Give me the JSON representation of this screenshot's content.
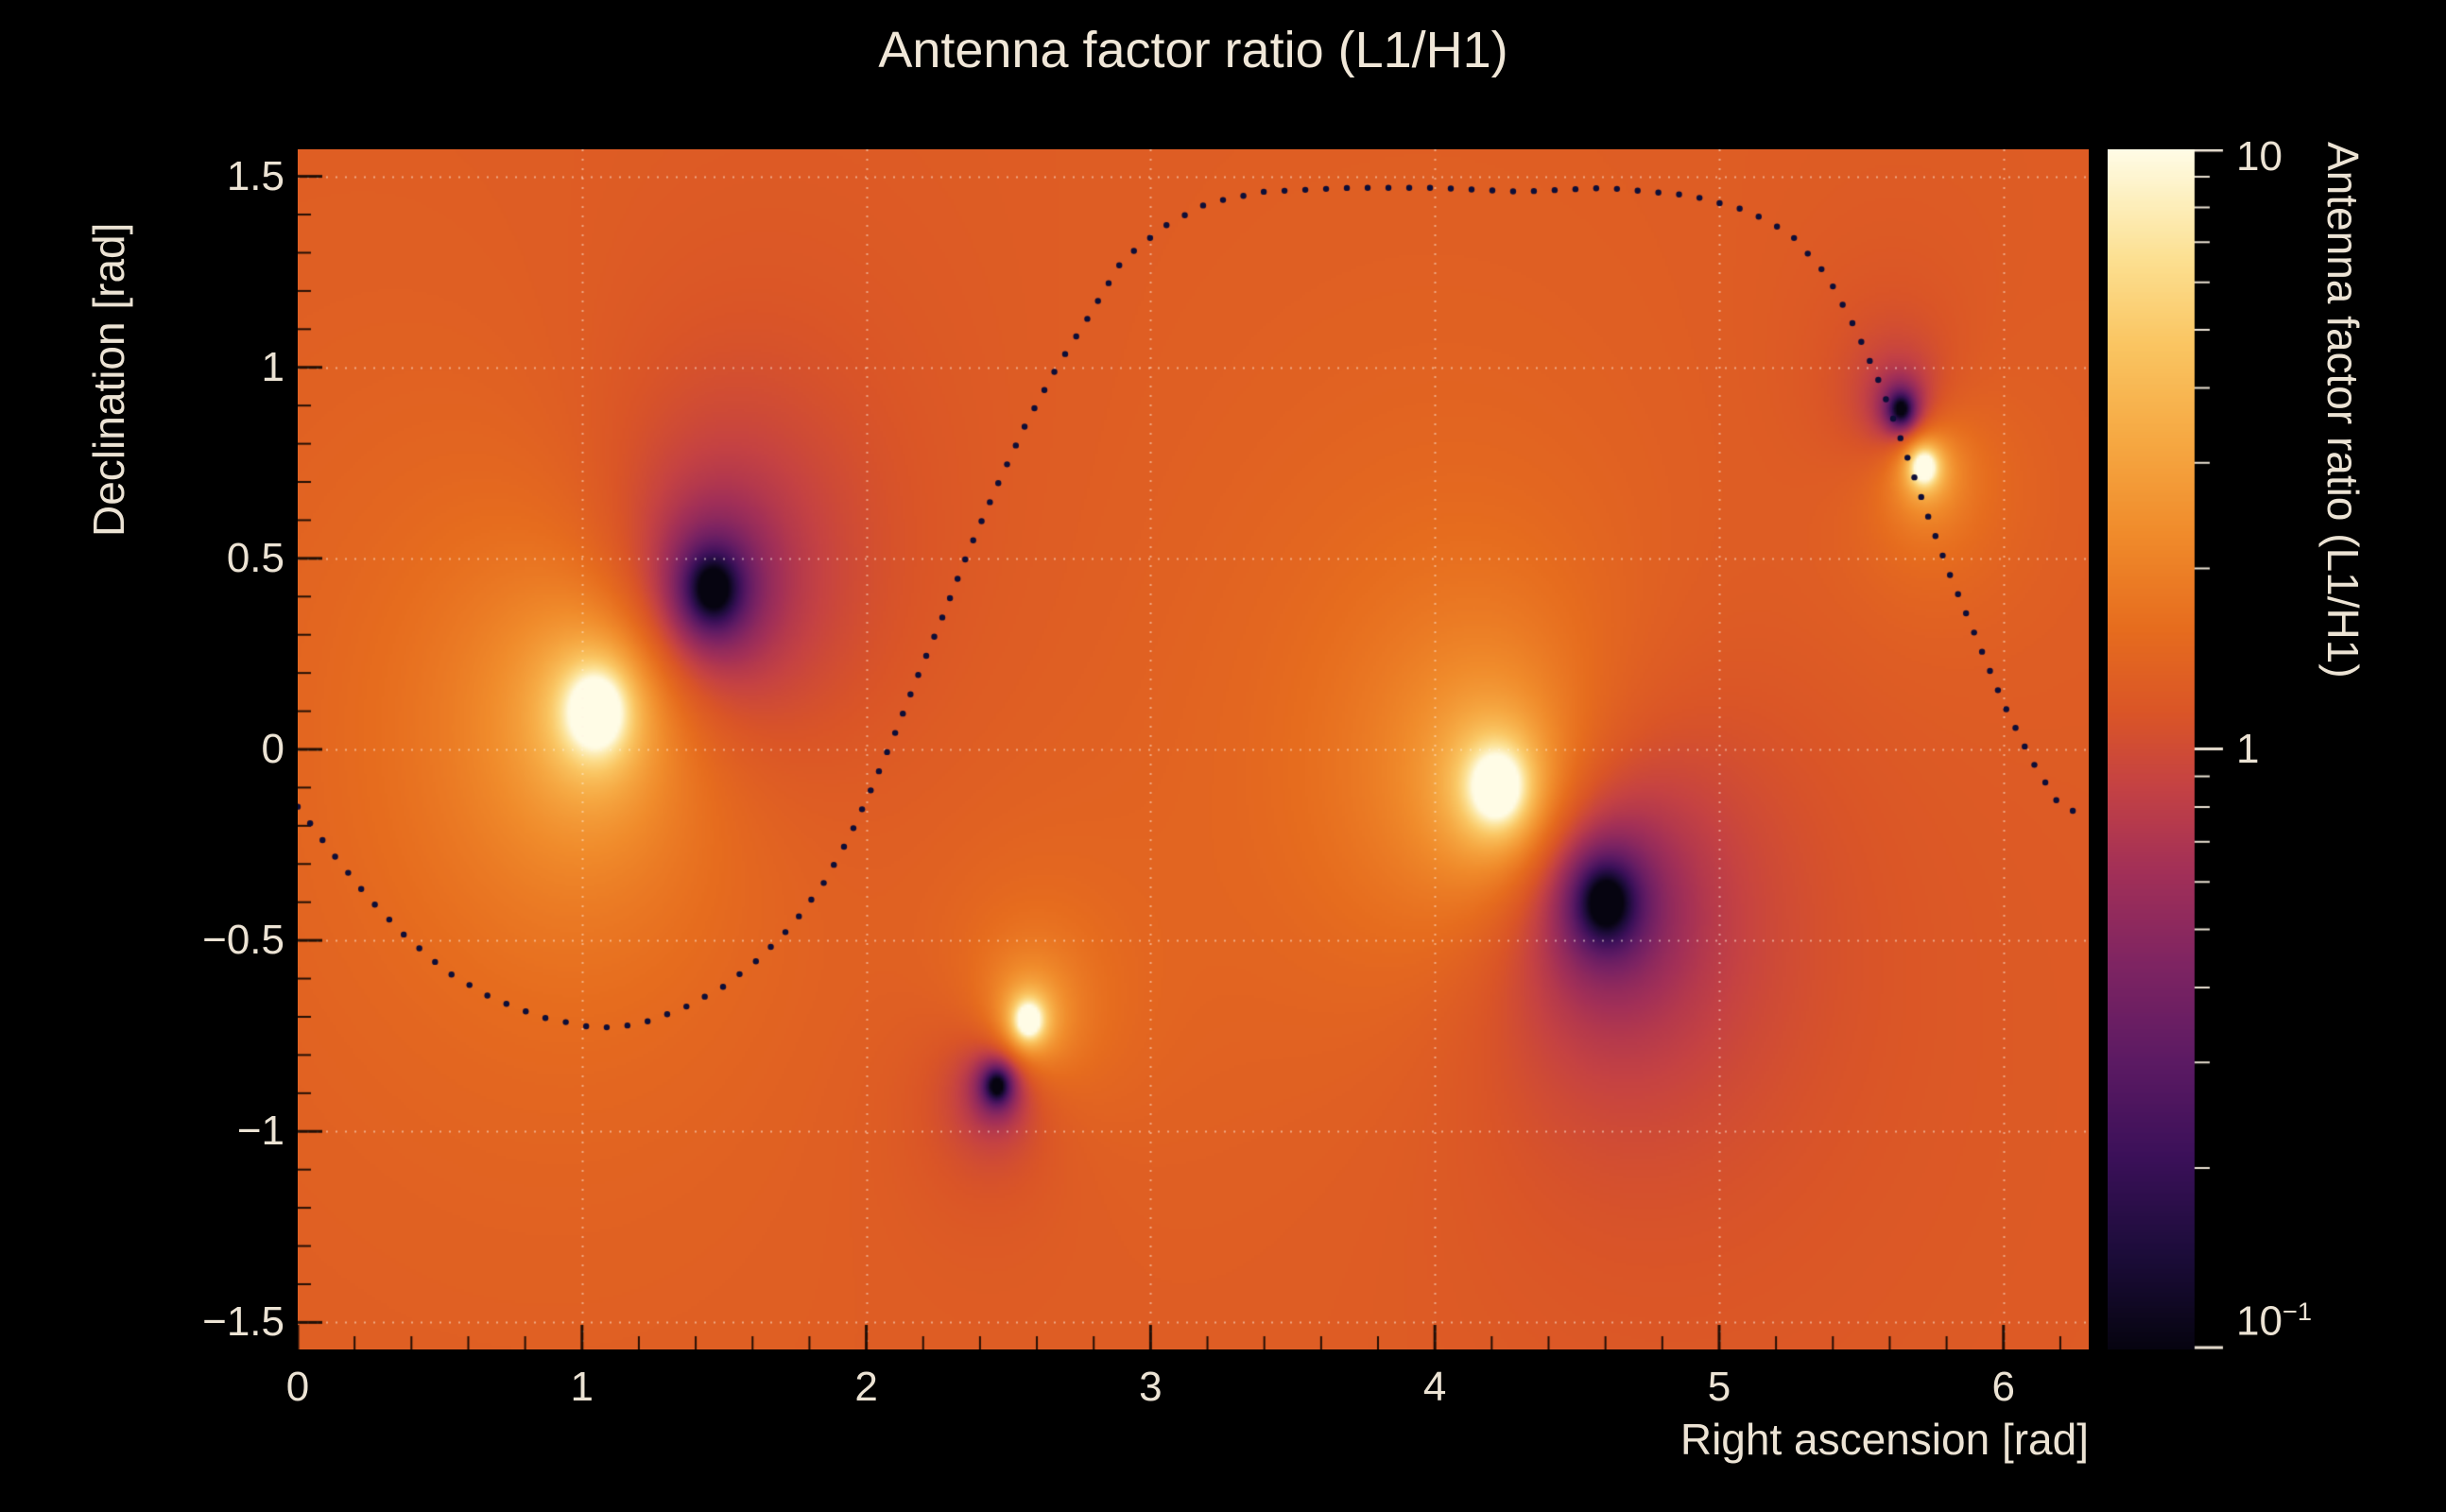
{
  "title": "Antenna factor ratio (L1/H1)",
  "axes": {
    "x": {
      "title": "Right ascension [rad]",
      "tick_labels": [
        "0",
        "1",
        "2",
        "3",
        "4",
        "5",
        "6"
      ],
      "tick_values": [
        0,
        1,
        2,
        3,
        4,
        5,
        6
      ],
      "range": [
        0,
        6.3
      ]
    },
    "y": {
      "title": "Declination [rad]",
      "tick_labels": [
        "1.5",
        "1",
        "0.5",
        "0",
        "−0.5",
        "−1",
        "−1.5"
      ],
      "tick_values": [
        1.5,
        1,
        0.5,
        0,
        -0.5,
        -1,
        -1.5
      ],
      "range": [
        -1.5708,
        1.5708
      ]
    },
    "z": {
      "title": "Antenna factor ratio (L1/H1)",
      "tick_labels": [
        {
          "base": "10",
          "sup": ""
        },
        {
          "base": "1",
          "sup": ""
        },
        {
          "base": "10",
          "sup": "−1"
        }
      ],
      "tick_values": [
        10,
        1,
        0.1
      ],
      "range": [
        0.1,
        10
      ],
      "scale": "log"
    }
  },
  "colors": {
    "background": "#000000",
    "text": "#ece3d4",
    "grid": "rgba(255,245,230,0.5)",
    "tick": "rgba(0,0,0,0.85)",
    "curve_dots": "#0e0e38"
  },
  "chart_data": {
    "type": "heatmap",
    "title": "Antenna factor ratio (L1/H1)",
    "xlabel": "Right ascension [rad]",
    "ylabel": "Declination [rad]",
    "zlabel": "Antenna factor ratio (L1/H1)",
    "x_range_rad": [
      0,
      6.3
    ],
    "y_range_rad": [
      -1.5708,
      1.5708
    ],
    "z_range_ratio": [
      0.1,
      10
    ],
    "z_scale": "log",
    "background_ratio": 1.26,
    "grid": {
      "x_lines": [
        1,
        2,
        3,
        4,
        5,
        6
      ],
      "y_lines": [
        -1.5,
        -1,
        -0.5,
        0,
        0.5,
        1,
        1.5
      ]
    },
    "extrema": [
      {
        "kind": "max",
        "ra": 1.05,
        "dec": 0.1,
        "peak_ratio": 10,
        "core_w": 0.105,
        "core_a": 1.25,
        "halo_w": 0.55,
        "halo_a": 0.4
      },
      {
        "kind": "min",
        "ra": 1.46,
        "dec": 0.42,
        "peak_ratio": 0.1,
        "core_w": 0.095,
        "core_a": 1.25,
        "halo_w": 0.45,
        "halo_a": 0.4
      },
      {
        "kind": "max",
        "ra": 2.57,
        "dec": -0.71,
        "peak_ratio": 10,
        "core_w": 0.05,
        "core_a": 1.25,
        "halo_w": 0.22,
        "halo_a": 0.3
      },
      {
        "kind": "min",
        "ra": 2.46,
        "dec": -0.88,
        "peak_ratio": 0.1,
        "core_w": 0.045,
        "core_a": 1.25,
        "halo_w": 0.2,
        "halo_a": 0.3
      },
      {
        "kind": "max",
        "ra": 4.22,
        "dec": -0.1,
        "peak_ratio": 10,
        "core_w": 0.105,
        "core_a": 1.25,
        "halo_w": 0.55,
        "halo_a": 0.4
      },
      {
        "kind": "min",
        "ra": 4.6,
        "dec": -0.4,
        "peak_ratio": 0.1,
        "core_w": 0.1,
        "core_a": 1.25,
        "halo_w": 0.5,
        "halo_a": 0.45
      },
      {
        "kind": "max",
        "ra": 5.72,
        "dec": 0.74,
        "peak_ratio": 10,
        "core_w": 0.048,
        "core_a": 1.25,
        "halo_w": 0.22,
        "halo_a": 0.3
      },
      {
        "kind": "min",
        "ra": 5.64,
        "dec": 0.89,
        "peak_ratio": 0.1,
        "core_w": 0.042,
        "core_a": 1.25,
        "halo_w": 0.2,
        "halo_a": 0.3
      }
    ],
    "overlay_curve": {
      "style": "dotted",
      "color": "#0e0e38",
      "points": [
        [
          0.0,
          -0.15
        ],
        [
          0.12,
          -0.27
        ],
        [
          0.25,
          -0.39
        ],
        [
          0.38,
          -0.49
        ],
        [
          0.52,
          -0.58
        ],
        [
          0.68,
          -0.65
        ],
        [
          0.85,
          -0.7
        ],
        [
          1.05,
          -0.73
        ],
        [
          1.2,
          -0.72
        ],
        [
          1.35,
          -0.68
        ],
        [
          1.5,
          -0.62
        ],
        [
          1.62,
          -0.55
        ],
        [
          1.74,
          -0.46
        ],
        [
          1.85,
          -0.35
        ],
        [
          1.94,
          -0.23
        ],
        [
          2.02,
          -0.1
        ],
        [
          2.1,
          0.04
        ],
        [
          2.18,
          0.19
        ],
        [
          2.27,
          0.35
        ],
        [
          2.36,
          0.52
        ],
        [
          2.46,
          0.69
        ],
        [
          2.56,
          0.85
        ],
        [
          2.67,
          1.0
        ],
        [
          2.78,
          1.13
        ],
        [
          2.9,
          1.28
        ],
        [
          3.05,
          1.37
        ],
        [
          3.2,
          1.43
        ],
        [
          3.4,
          1.46
        ],
        [
          3.7,
          1.47
        ],
        [
          4.0,
          1.47
        ],
        [
          4.3,
          1.46
        ],
        [
          4.6,
          1.47
        ],
        [
          4.9,
          1.45
        ],
        [
          5.1,
          1.41
        ],
        [
          5.25,
          1.35
        ],
        [
          5.38,
          1.24
        ],
        [
          5.48,
          1.1
        ],
        [
          5.57,
          0.95
        ],
        [
          5.65,
          0.79
        ],
        [
          5.73,
          0.62
        ],
        [
          5.81,
          0.46
        ],
        [
          5.9,
          0.3
        ],
        [
          6.0,
          0.12
        ],
        [
          6.1,
          -0.03
        ],
        [
          6.2,
          -0.15
        ],
        [
          6.28,
          -0.17
        ]
      ]
    },
    "colormap": [
      [
        0.0,
        "#060410"
      ],
      [
        0.08,
        "#1c0c3a"
      ],
      [
        0.16,
        "#3b1059"
      ],
      [
        0.24,
        "#5c1a63"
      ],
      [
        0.32,
        "#7e2462"
      ],
      [
        0.4,
        "#a33057"
      ],
      [
        0.47,
        "#c54243"
      ],
      [
        0.53,
        "#da5527"
      ],
      [
        0.6,
        "#e66c1e"
      ],
      [
        0.68,
        "#f08b2b"
      ],
      [
        0.76,
        "#f6a943"
      ],
      [
        0.84,
        "#fac663"
      ],
      [
        0.91,
        "#fce092"
      ],
      [
        0.96,
        "#fdf0c0"
      ],
      [
        1.0,
        "#fffce6"
      ]
    ]
  }
}
